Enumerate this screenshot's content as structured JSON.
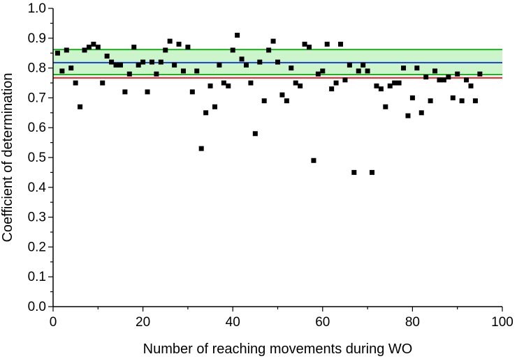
{
  "chart_data": {
    "type": "scatter",
    "title": "",
    "xlabel": "Number of reaching movements during WO",
    "ylabel": "Coefficient of determination",
    "xlim": [
      0,
      100
    ],
    "ylim": [
      0.0,
      1.0
    ],
    "x_ticks": [
      "0",
      "20",
      "40",
      "60",
      "80",
      "100"
    ],
    "y_ticks": [
      "0.0",
      "0.1",
      "0.2",
      "0.3",
      "0.4",
      "0.5",
      "0.6",
      "0.7",
      "0.8",
      "0.9",
      "1.0"
    ],
    "grid": false,
    "legend": "none",
    "band": {
      "lower": 0.778,
      "upper": 0.862,
      "fill": "#ccf5cc",
      "edge": "#1db31d"
    },
    "mean_line": {
      "y": 0.818,
      "color": "#1a3fcc"
    },
    "threshold_line": {
      "y": 0.767,
      "color": "#e02020"
    },
    "marker_color": "#000000",
    "points": [
      [
        1,
        0.85
      ],
      [
        2,
        0.79
      ],
      [
        3,
        0.86
      ],
      [
        4,
        0.8
      ],
      [
        5,
        0.75
      ],
      [
        6,
        0.67
      ],
      [
        7,
        0.86
      ],
      [
        8,
        0.87
      ],
      [
        9,
        0.88
      ],
      [
        10,
        0.87
      ],
      [
        11,
        0.75
      ],
      [
        12,
        0.84
      ],
      [
        13,
        0.82
      ],
      [
        14,
        0.81
      ],
      [
        15,
        0.81
      ],
      [
        16,
        0.72
      ],
      [
        17,
        0.78
      ],
      [
        18,
        0.87
      ],
      [
        19,
        0.81
      ],
      [
        20,
        0.82
      ],
      [
        21,
        0.72
      ],
      [
        22,
        0.82
      ],
      [
        23,
        0.78
      ],
      [
        24,
        0.82
      ],
      [
        25,
        0.86
      ],
      [
        26,
        0.89
      ],
      [
        27,
        0.81
      ],
      [
        28,
        0.88
      ],
      [
        29,
        0.79
      ],
      [
        30,
        0.87
      ],
      [
        31,
        0.72
      ],
      [
        32,
        0.79
      ],
      [
        33,
        0.53
      ],
      [
        34,
        0.65
      ],
      [
        35,
        0.74
      ],
      [
        36,
        0.67
      ],
      [
        37,
        0.81
      ],
      [
        38,
        0.75
      ],
      [
        39,
        0.74
      ],
      [
        40,
        0.86
      ],
      [
        41,
        0.91
      ],
      [
        42,
        0.83
      ],
      [
        43,
        0.81
      ],
      [
        44,
        0.75
      ],
      [
        45,
        0.58
      ],
      [
        46,
        0.82
      ],
      [
        47,
        0.69
      ],
      [
        48,
        0.86
      ],
      [
        49,
        0.89
      ],
      [
        50,
        0.82
      ],
      [
        51,
        0.71
      ],
      [
        52,
        0.69
      ],
      [
        53,
        0.8
      ],
      [
        54,
        0.75
      ],
      [
        55,
        0.74
      ],
      [
        56,
        0.88
      ],
      [
        57,
        0.87
      ],
      [
        58,
        0.49
      ],
      [
        59,
        0.78
      ],
      [
        60,
        0.79
      ],
      [
        61,
        0.88
      ],
      [
        62,
        0.73
      ],
      [
        63,
        0.75
      ],
      [
        64,
        0.88
      ],
      [
        65,
        0.76
      ],
      [
        66,
        0.81
      ],
      [
        67,
        0.45
      ],
      [
        68,
        0.79
      ],
      [
        69,
        0.81
      ],
      [
        70,
        0.79
      ],
      [
        71,
        0.45
      ],
      [
        72,
        0.74
      ],
      [
        73,
        0.73
      ],
      [
        74,
        0.67
      ],
      [
        75,
        0.74
      ],
      [
        76,
        0.75
      ],
      [
        77,
        0.75
      ],
      [
        78,
        0.8
      ],
      [
        79,
        0.64
      ],
      [
        80,
        0.7
      ],
      [
        81,
        0.8
      ],
      [
        82,
        0.65
      ],
      [
        83,
        0.77
      ],
      [
        84,
        0.69
      ],
      [
        85,
        0.79
      ],
      [
        86,
        0.76
      ],
      [
        87,
        0.76
      ],
      [
        88,
        0.77
      ],
      [
        89,
        0.7
      ],
      [
        90,
        0.78
      ],
      [
        91,
        0.69
      ],
      [
        92,
        0.76
      ],
      [
        93,
        0.74
      ],
      [
        94,
        0.69
      ],
      [
        95,
        0.78
      ]
    ]
  }
}
